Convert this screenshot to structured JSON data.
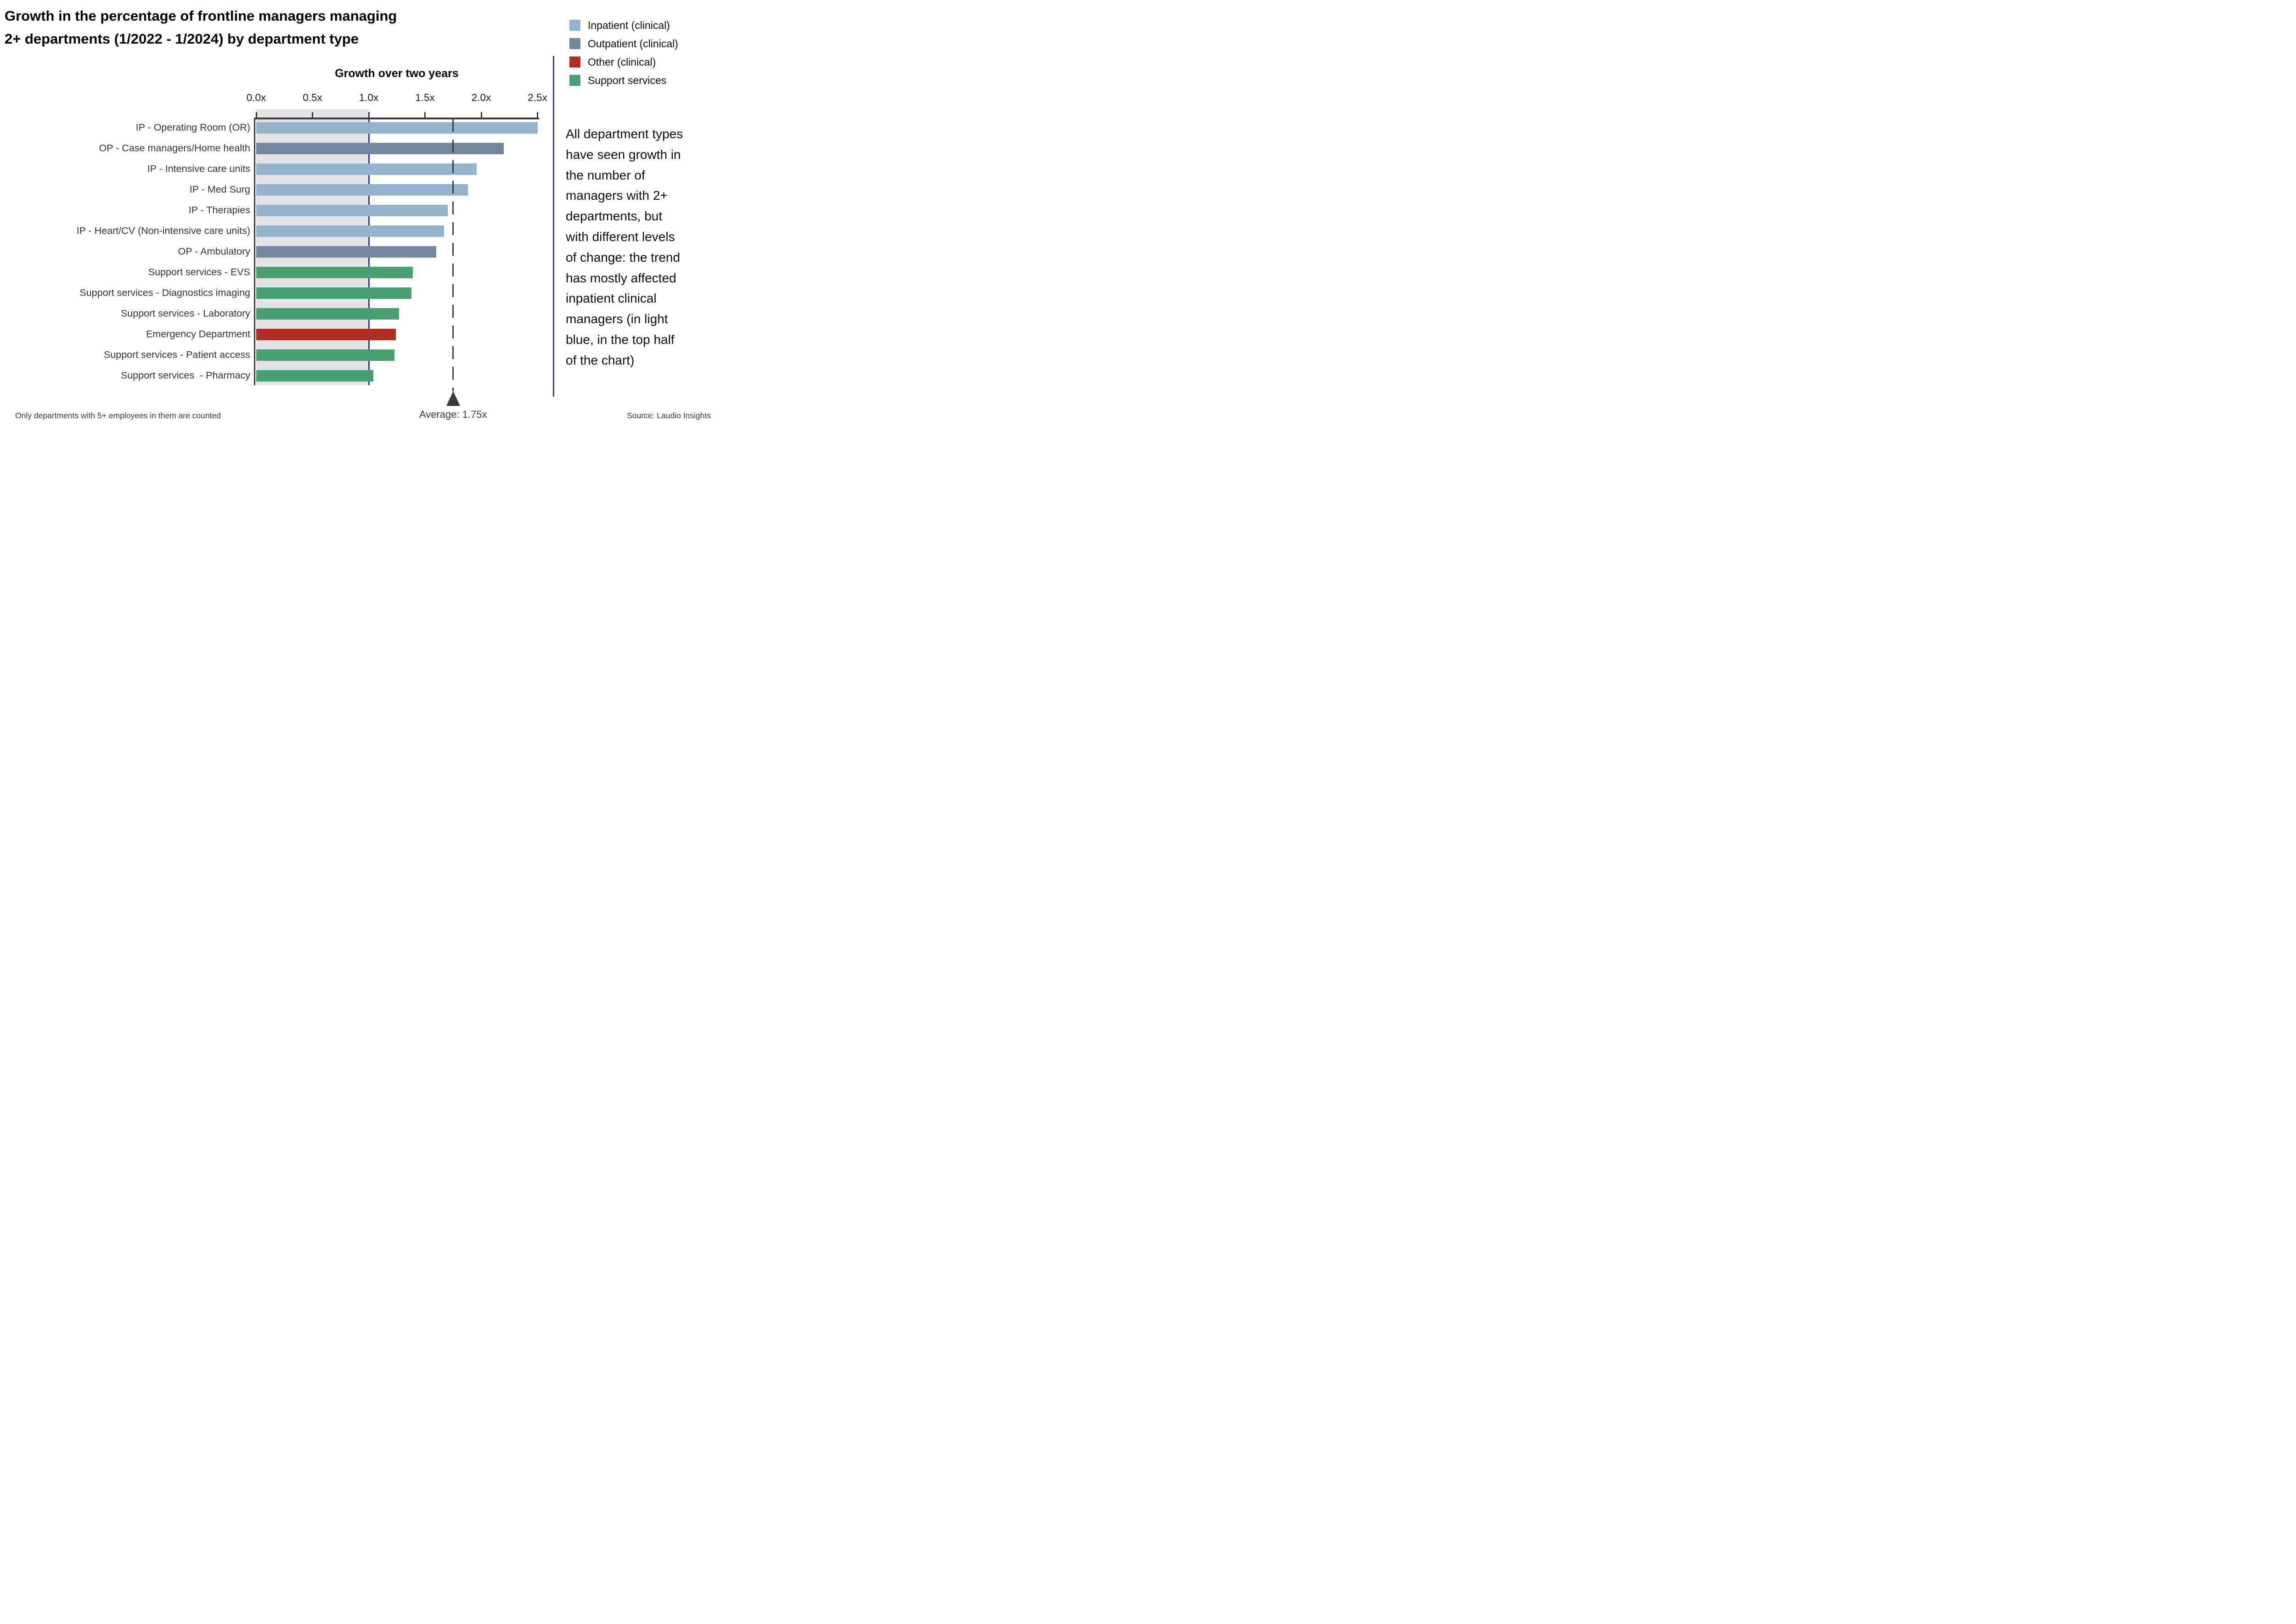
{
  "title": {
    "line1": "Growth in the percentage of frontline managers managing",
    "line2": "2+ departments (1/2022 - 1/2024) by department type"
  },
  "legend": {
    "items": [
      {
        "label": "Inpatient (clinical)",
        "group": "inpatient",
        "color": "#94b3ce"
      },
      {
        "label": "Outpatient (clinical)",
        "group": "outpatient",
        "color": "#71889e"
      },
      {
        "label": "Other (clinical)",
        "group": "other",
        "color": "#b22d26"
      },
      {
        "label": "Support services",
        "group": "support",
        "color": "#49a171"
      }
    ]
  },
  "chart_data": {
    "type": "bar",
    "orientation": "horizontal",
    "title": "Growth over two years",
    "xlabel": "Growth over two years",
    "ylabel": "",
    "xlim": [
      0,
      2.5
    ],
    "x_ticks": [
      "0.0x",
      "0.5x",
      "1.0x",
      "1.5x",
      "2.0x",
      "2.5x"
    ],
    "x_tick_values": [
      0.0,
      0.5,
      1.0,
      1.5,
      2.0,
      2.5
    ],
    "axis_side": "top",
    "grid": false,
    "unit_suffix": "x",
    "shaded_region": {
      "from": 0.0,
      "to": 1.0,
      "color": "#e4e4e6"
    },
    "reference_line": {
      "value": 1.0,
      "color": "#2c3a96"
    },
    "average_marker": {
      "value": 1.75,
      "label": "Average: 1.75x",
      "style": "dashed-line-with-triangle"
    },
    "groups": {
      "inpatient": {
        "color": "#94b3ce"
      },
      "outpatient": {
        "color": "#71889e"
      },
      "other": {
        "color": "#b22d26"
      },
      "support": {
        "color": "#49a171"
      }
    },
    "bars": [
      {
        "label": "IP - Operating Room (OR)",
        "value": 2.5,
        "group": "inpatient"
      },
      {
        "label": "OP - Case managers/Home health",
        "value": 2.2,
        "group": "outpatient"
      },
      {
        "label": "IP - Intensive care units",
        "value": 1.96,
        "group": "inpatient"
      },
      {
        "label": "IP - Med Surg",
        "value": 1.88,
        "group": "inpatient"
      },
      {
        "label": "IP - Therapies",
        "value": 1.7,
        "group": "inpatient"
      },
      {
        "label": "IP - Heart/CV (Non-intensive care units)",
        "value": 1.67,
        "group": "inpatient"
      },
      {
        "label": "OP - Ambulatory",
        "value": 1.6,
        "group": "outpatient"
      },
      {
        "label": "Support services - EVS",
        "value": 1.39,
        "group": "support"
      },
      {
        "label": "Support services - Diagnostics imaging",
        "value": 1.38,
        "group": "support"
      },
      {
        "label": "Support services - Laboratory",
        "value": 1.27,
        "group": "support"
      },
      {
        "label": "Emergency Department",
        "value": 1.24,
        "group": "other"
      },
      {
        "label": "Support services - Patient access",
        "value": 1.23,
        "group": "support"
      },
      {
        "label": "Support services  - Pharmacy",
        "value": 1.04,
        "group": "support"
      }
    ]
  },
  "annotation": {
    "text": "All department types have seen growth in the number of managers with 2+ departments, but with different levels of change: the trend has mostly affected inpatient clinical managers (in light blue, in the top half of the chart)",
    "lines": [
      "All department types",
      "have seen growth in",
      "the number of",
      "managers with 2+",
      "departments, but",
      "with different levels",
      "of change: the trend",
      "has mostly affected",
      "inpatient clinical",
      "managers (in light",
      "blue, in the top half",
      "of the chart)"
    ]
  },
  "average": {
    "label": "Average: 1.75x"
  },
  "footer": {
    "left": "Only departments with 5+ employees in them are counted",
    "right": "Source: Laudio Insights"
  }
}
